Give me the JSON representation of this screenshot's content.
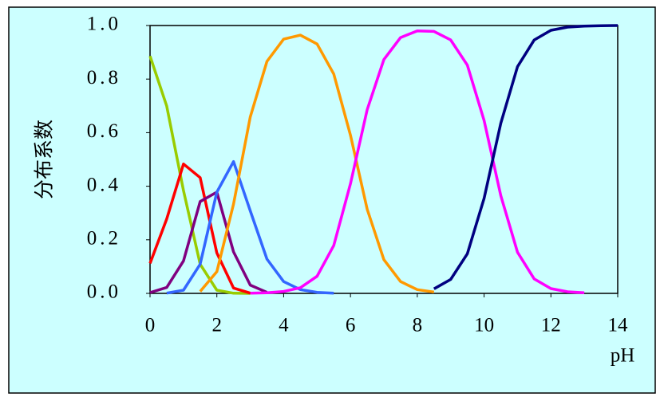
{
  "chart_data": {
    "type": "line",
    "x_label": "pH",
    "y_label": "分布系数",
    "x": [
      0,
      0.5,
      1,
      1.5,
      2,
      2.5,
      3,
      3.5,
      4,
      4.5,
      5,
      5.5,
      6,
      6.5,
      7,
      7.5,
      8,
      8.5,
      9,
      9.5,
      10,
      10.5,
      11,
      11.5,
      12,
      12.5,
      13,
      13.5,
      14
    ],
    "series": [
      {
        "color": "#99cc00",
        "values": [
          0.886,
          0.699,
          0.384,
          0.109,
          0.012,
          0.0005,
          0,
          null,
          null,
          null,
          null,
          null,
          null,
          null,
          null,
          null,
          null,
          null,
          null,
          null,
          null,
          null,
          null,
          null,
          null,
          null,
          null,
          null,
          null
        ]
      },
      {
        "color": "#ff0000",
        "values": [
          0.112,
          0.278,
          0.483,
          0.432,
          0.151,
          0.02,
          0.001,
          null,
          null,
          null,
          null,
          null,
          null,
          null,
          null,
          null,
          null,
          null,
          null,
          null,
          null,
          null,
          null,
          null,
          null,
          null,
          null,
          null,
          null
        ]
      },
      {
        "color": "#800080",
        "values": [
          0.003,
          0.022,
          0.121,
          0.343,
          0.378,
          0.155,
          0.031,
          0.004,
          null,
          null,
          null,
          null,
          null,
          null,
          null,
          null,
          null,
          null,
          null,
          null,
          null,
          null,
          null,
          null,
          null,
          null,
          null,
          null,
          null
        ]
      },
      {
        "color": "#3366ff",
        "values": [
          null,
          0.001,
          0.012,
          0.109,
          0.378,
          0.492,
          0.308,
          0.128,
          0.044,
          0.014,
          0.004,
          0.001,
          null,
          null,
          null,
          null,
          null,
          null,
          null,
          null,
          null,
          null,
          null,
          null,
          null,
          null,
          null,
          null,
          null
        ]
      },
      {
        "color": "#ff9900",
        "values": [
          null,
          null,
          null,
          0.007,
          0.081,
          0.333,
          0.659,
          0.866,
          0.949,
          0.964,
          0.931,
          0.819,
          0.591,
          0.314,
          0.126,
          0.044,
          0.014,
          0.005,
          null,
          null,
          null,
          null,
          null,
          null,
          null,
          null,
          null,
          null,
          null
        ]
      },
      {
        "color": "#ff00ff",
        "values": [
          null,
          null,
          null,
          null,
          null,
          null,
          0.001,
          0.002,
          0.007,
          0.021,
          0.064,
          0.179,
          0.409,
          0.686,
          0.873,
          0.955,
          0.98,
          0.978,
          0.946,
          0.852,
          0.645,
          0.365,
          0.154,
          0.054,
          0.018,
          0.006,
          0.002,
          null,
          null
        ]
      },
      {
        "color": "#000080",
        "values": [
          null,
          null,
          null,
          null,
          null,
          null,
          null,
          null,
          null,
          null,
          null,
          null,
          null,
          null,
          null,
          null,
          null,
          0.017,
          0.052,
          0.148,
          0.355,
          0.635,
          0.846,
          0.946,
          0.982,
          0.994,
          0.998,
          0.999,
          1.0
        ]
      }
    ],
    "xlim": [
      0,
      14
    ],
    "xticks": [
      0,
      2,
      4,
      6,
      8,
      10,
      12,
      14
    ],
    "ylim": [
      0,
      1
    ],
    "yticks": [
      {
        "value": 0,
        "label": "0.0"
      },
      {
        "value": 0.2,
        "label": "0.2"
      },
      {
        "value": 0.4,
        "label": "0.4"
      },
      {
        "value": 0.6,
        "label": "0.6"
      },
      {
        "value": 0.8,
        "label": "0.8"
      },
      {
        "value": 1,
        "label": "1.0"
      }
    ],
    "grid": false
  }
}
